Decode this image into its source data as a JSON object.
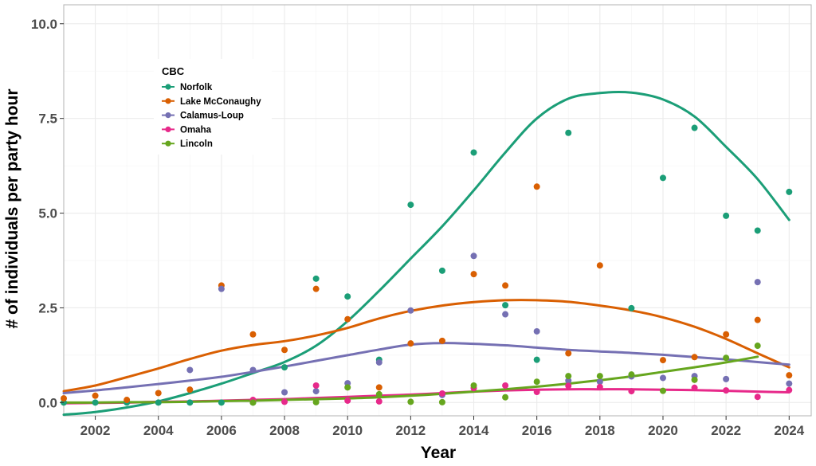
{
  "chart_data": {
    "type": "scatter",
    "xlabel": "Year",
    "ylabel": "# of individuals per party hour",
    "xlim": [
      2001,
      2024.7
    ],
    "ylim": [
      -0.35,
      10.5
    ],
    "x_ticks": [
      2002,
      2004,
      2006,
      2008,
      2010,
      2012,
      2014,
      2016,
      2018,
      2020,
      2022,
      2024
    ],
    "y_ticks": [
      0.0,
      2.5,
      5.0,
      7.5,
      10.0
    ],
    "x_tick_labels": [
      "2002",
      "2004",
      "2006",
      "2008",
      "2010",
      "2012",
      "2014",
      "2016",
      "2018",
      "2020",
      "2022",
      "2024"
    ],
    "y_tick_labels": [
      "0.0",
      "2.5",
      "5.0",
      "7.5",
      "10.0"
    ],
    "grid": true,
    "legend": {
      "title": "CBC",
      "placement": "top-left"
    },
    "series": [
      {
        "name": "Norfolk",
        "color": "#1b9e77",
        "points": [
          [
            2001,
            0
          ],
          [
            2002,
            0
          ],
          [
            2003,
            0
          ],
          [
            2004,
            0
          ],
          [
            2005,
            0
          ],
          [
            2006,
            0
          ],
          [
            2007,
            0
          ],
          [
            2008,
            0.93
          ],
          [
            2009,
            3.27
          ],
          [
            2010,
            2.8
          ],
          [
            2011,
            1.13
          ],
          [
            2012,
            5.22
          ],
          [
            2013,
            3.48
          ],
          [
            2014,
            6.6
          ],
          [
            2015,
            2.57
          ],
          [
            2016,
            1.13
          ],
          [
            2017,
            7.12
          ],
          [
            2019,
            2.49
          ],
          [
            2020,
            5.93
          ],
          [
            2021,
            7.25
          ],
          [
            2022,
            4.93
          ],
          [
            2023,
            4.54
          ],
          [
            2024,
            5.56
          ]
        ],
        "smooth": [
          [
            2001,
            -0.32
          ],
          [
            2002,
            -0.25
          ],
          [
            2003,
            -0.13
          ],
          [
            2004,
            0.03
          ],
          [
            2005,
            0.25
          ],
          [
            2006,
            0.5
          ],
          [
            2007,
            0.78
          ],
          [
            2008,
            1.07
          ],
          [
            2009,
            1.5
          ],
          [
            2010,
            2.15
          ],
          [
            2011,
            2.95
          ],
          [
            2012,
            3.8
          ],
          [
            2013,
            4.65
          ],
          [
            2014,
            5.6
          ],
          [
            2015,
            6.6
          ],
          [
            2016,
            7.5
          ],
          [
            2017,
            8.02
          ],
          [
            2018,
            8.17
          ],
          [
            2019,
            8.18
          ],
          [
            2020,
            8.0
          ],
          [
            2021,
            7.55
          ],
          [
            2022,
            6.75
          ],
          [
            2023,
            5.9
          ],
          [
            2024,
            4.82
          ]
        ]
      },
      {
        "name": "Lake McConaughy",
        "color": "#d95f02",
        "points": [
          [
            2001,
            0.11
          ],
          [
            2002,
            0.18
          ],
          [
            2003,
            0.07
          ],
          [
            2004,
            0.25
          ],
          [
            2005,
            0.34
          ],
          [
            2006,
            3.09
          ],
          [
            2007,
            1.8
          ],
          [
            2008,
            1.39
          ],
          [
            2009,
            3.0
          ],
          [
            2010,
            2.2
          ],
          [
            2011,
            0.4
          ],
          [
            2012,
            1.56
          ],
          [
            2013,
            1.63
          ],
          [
            2014,
            3.39
          ],
          [
            2015,
            3.09
          ],
          [
            2016,
            5.7
          ],
          [
            2017,
            1.3
          ],
          [
            2018,
            3.62
          ],
          [
            2020,
            1.12
          ],
          [
            2021,
            1.2
          ],
          [
            2022,
            1.8
          ],
          [
            2023,
            2.18
          ],
          [
            2024,
            0.72
          ]
        ],
        "smooth": [
          [
            2001,
            0.3
          ],
          [
            2002,
            0.45
          ],
          [
            2003,
            0.67
          ],
          [
            2004,
            0.9
          ],
          [
            2005,
            1.15
          ],
          [
            2006,
            1.37
          ],
          [
            2007,
            1.52
          ],
          [
            2008,
            1.62
          ],
          [
            2009,
            1.77
          ],
          [
            2010,
            1.97
          ],
          [
            2011,
            2.22
          ],
          [
            2012,
            2.42
          ],
          [
            2013,
            2.56
          ],
          [
            2014,
            2.65
          ],
          [
            2015,
            2.7
          ],
          [
            2016,
            2.7
          ],
          [
            2017,
            2.66
          ],
          [
            2018,
            2.56
          ],
          [
            2019,
            2.43
          ],
          [
            2020,
            2.25
          ],
          [
            2021,
            2.0
          ],
          [
            2022,
            1.68
          ],
          [
            2023,
            1.3
          ],
          [
            2024,
            0.93
          ]
        ]
      },
      {
        "name": "Calamus-Loup",
        "color": "#7570b3",
        "points": [
          [
            2005,
            0.86
          ],
          [
            2006,
            3.0
          ],
          [
            2007,
            0.86
          ],
          [
            2008,
            0.27
          ],
          [
            2009,
            0.3
          ],
          [
            2010,
            0.51
          ],
          [
            2011,
            1.06
          ],
          [
            2012,
            2.43
          ],
          [
            2013,
            0.2
          ],
          [
            2014,
            3.87
          ],
          [
            2015,
            2.33
          ],
          [
            2016,
            1.88
          ],
          [
            2017,
            0.58
          ],
          [
            2018,
            0.55
          ],
          [
            2019,
            0.69
          ],
          [
            2020,
            0.65
          ],
          [
            2021,
            0.7
          ],
          [
            2022,
            0.62
          ],
          [
            2023,
            3.18
          ],
          [
            2024,
            0.5
          ]
        ],
        "smooth": [
          [
            2001,
            0.25
          ],
          [
            2002,
            0.32
          ],
          [
            2003,
            0.4
          ],
          [
            2004,
            0.49
          ],
          [
            2005,
            0.58
          ],
          [
            2006,
            0.68
          ],
          [
            2007,
            0.81
          ],
          [
            2008,
            0.95
          ],
          [
            2009,
            1.1
          ],
          [
            2010,
            1.25
          ],
          [
            2011,
            1.4
          ],
          [
            2012,
            1.53
          ],
          [
            2013,
            1.57
          ],
          [
            2014,
            1.55
          ],
          [
            2015,
            1.51
          ],
          [
            2016,
            1.45
          ],
          [
            2017,
            1.39
          ],
          [
            2018,
            1.35
          ],
          [
            2019,
            1.31
          ],
          [
            2020,
            1.26
          ],
          [
            2021,
            1.2
          ],
          [
            2022,
            1.14
          ],
          [
            2023,
            1.07
          ],
          [
            2024,
            1.0
          ]
        ]
      },
      {
        "name": "Omaha",
        "color": "#e7298a",
        "points": [
          [
            2007,
            0.07
          ],
          [
            2008,
            0.02
          ],
          [
            2009,
            0.45
          ],
          [
            2010,
            0.05
          ],
          [
            2011,
            0.03
          ],
          [
            2013,
            0.24
          ],
          [
            2014,
            0.38
          ],
          [
            2015,
            0.45
          ],
          [
            2016,
            0.28
          ],
          [
            2017,
            0.44
          ],
          [
            2018,
            0.41
          ],
          [
            2019,
            0.3
          ],
          [
            2021,
            0.39
          ],
          [
            2022,
            0.32
          ],
          [
            2023,
            0.15
          ],
          [
            2024,
            0.33
          ]
        ],
        "smooth": [
          [
            2001,
            -0.02
          ],
          [
            2002,
            -0.01
          ],
          [
            2003,
            0.0
          ],
          [
            2004,
            0.02
          ],
          [
            2005,
            0.03
          ],
          [
            2006,
            0.05
          ],
          [
            2007,
            0.07
          ],
          [
            2008,
            0.09
          ],
          [
            2009,
            0.12
          ],
          [
            2010,
            0.15
          ],
          [
            2011,
            0.18
          ],
          [
            2012,
            0.21
          ],
          [
            2013,
            0.25
          ],
          [
            2014,
            0.29
          ],
          [
            2015,
            0.32
          ],
          [
            2016,
            0.34
          ],
          [
            2017,
            0.35
          ],
          [
            2018,
            0.35
          ],
          [
            2019,
            0.35
          ],
          [
            2020,
            0.34
          ],
          [
            2021,
            0.33
          ],
          [
            2022,
            0.31
          ],
          [
            2023,
            0.29
          ],
          [
            2024,
            0.27
          ]
        ]
      },
      {
        "name": "Lincoln",
        "color": "#66a61e",
        "points": [
          [
            2007,
            0
          ],
          [
            2009,
            0.01
          ],
          [
            2010,
            0.4
          ],
          [
            2011,
            0.22
          ],
          [
            2012,
            0.02
          ],
          [
            2013,
            0.01
          ],
          [
            2014,
            0.45
          ],
          [
            2015,
            0.14
          ],
          [
            2016,
            0.55
          ],
          [
            2017,
            0.7
          ],
          [
            2018,
            0.7
          ],
          [
            2019,
            0.74
          ],
          [
            2020,
            0.31
          ],
          [
            2021,
            0.6
          ],
          [
            2022,
            1.18
          ],
          [
            2023,
            1.5
          ]
        ],
        "smooth": [
          [
            2001,
            0.0
          ],
          [
            2002,
            0.0
          ],
          [
            2003,
            0.01
          ],
          [
            2004,
            0.01
          ],
          [
            2005,
            0.02
          ],
          [
            2006,
            0.04
          ],
          [
            2007,
            0.05
          ],
          [
            2008,
            0.07
          ],
          [
            2009,
            0.09
          ],
          [
            2010,
            0.11
          ],
          [
            2011,
            0.14
          ],
          [
            2012,
            0.18
          ],
          [
            2013,
            0.23
          ],
          [
            2014,
            0.29
          ],
          [
            2015,
            0.35
          ],
          [
            2016,
            0.42
          ],
          [
            2017,
            0.5
          ],
          [
            2018,
            0.59
          ],
          [
            2019,
            0.69
          ],
          [
            2020,
            0.81
          ],
          [
            2021,
            0.93
          ],
          [
            2022,
            1.06
          ],
          [
            2023,
            1.21
          ]
        ]
      }
    ]
  }
}
